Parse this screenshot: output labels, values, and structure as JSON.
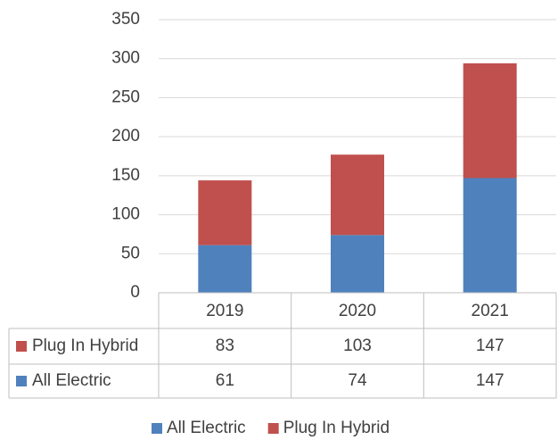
{
  "chart_data": {
    "type": "bar",
    "stacked": true,
    "categories": [
      "2019",
      "2020",
      "2021"
    ],
    "series": [
      {
        "name": "All Electric",
        "color": "#4f81bd",
        "values": [
          61,
          74,
          147
        ]
      },
      {
        "name": "Plug In Hybrid",
        "color": "#c0504d",
        "values": [
          83,
          103,
          147
        ]
      }
    ],
    "ylim": [
      0,
      350
    ],
    "yticks": [
      0,
      50,
      100,
      150,
      200,
      250,
      300,
      350
    ],
    "grid": true,
    "data_table": true,
    "legend": "bottom"
  }
}
